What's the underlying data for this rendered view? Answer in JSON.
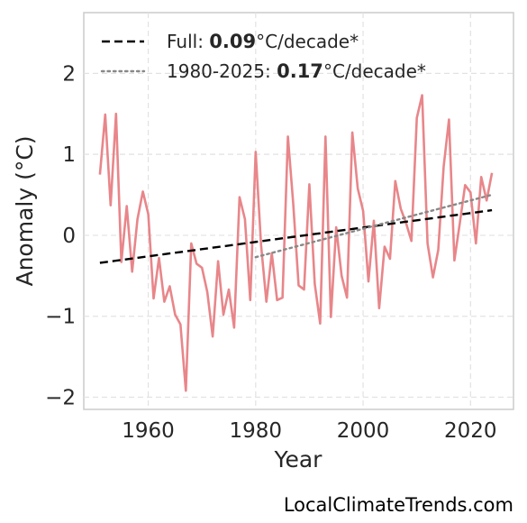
{
  "chart_data": {
    "type": "line",
    "xlabel": "Year",
    "ylabel": "Anomaly (°C)",
    "xlim": [
      1948,
      2028
    ],
    "ylim": [
      -2.15,
      2.75
    ],
    "xticks": [
      1960,
      1980,
      2000,
      2020
    ],
    "yticks": [
      -2,
      -1,
      0,
      1,
      2
    ],
    "ytick_labels": [
      "−2",
      "−1",
      "0",
      "1",
      "2"
    ],
    "grid": true,
    "legend_position": "top-left",
    "series": [
      {
        "style": "solid",
        "color": "#e8868a",
        "x": [
          1951,
          1952,
          1953,
          1954,
          1955,
          1956,
          1957,
          1958,
          1959,
          1960,
          1961,
          1962,
          1963,
          1964,
          1965,
          1966,
          1967,
          1968,
          1969,
          1970,
          1971,
          1972,
          1973,
          1974,
          1975,
          1976,
          1977,
          1978,
          1979,
          1980,
          1981,
          1982,
          1983,
          1984,
          1985,
          1986,
          1987,
          1988,
          1989,
          1990,
          1991,
          1992,
          1993,
          1994,
          1995,
          1996,
          1997,
          1998,
          1999,
          2000,
          2001,
          2002,
          2003,
          2004,
          2005,
          2006,
          2007,
          2008,
          2009,
          2010,
          2011,
          2012,
          2013,
          2014,
          2015,
          2016,
          2017,
          2018,
          2019,
          2020,
          2021,
          2022,
          2023,
          2024
        ],
        "y": [
          0.75,
          1.49,
          0.37,
          1.5,
          -0.33,
          0.36,
          -0.45,
          0.2,
          0.54,
          0.26,
          -0.78,
          -0.28,
          -0.82,
          -0.63,
          -0.98,
          -1.1,
          -1.92,
          -0.1,
          -0.35,
          -0.4,
          -0.7,
          -1.25,
          -0.32,
          -0.98,
          -0.67,
          -1.14,
          0.47,
          0.2,
          -0.8,
          1.03,
          -0.12,
          -0.82,
          -0.22,
          -0.8,
          -0.77,
          1.22,
          0.39,
          -0.62,
          -0.67,
          0.63,
          -0.6,
          -1.09,
          1.22,
          -1.01,
          0.1,
          -0.5,
          -0.77,
          1.27,
          0.58,
          0.3,
          -0.57,
          0.18,
          -0.9,
          -0.14,
          -0.29,
          0.67,
          0.33,
          0.15,
          -0.07,
          1.45,
          1.73,
          -0.1,
          -0.52,
          -0.18,
          0.85,
          1.43,
          -0.31,
          0.15,
          0.62,
          0.53,
          -0.1,
          0.72,
          0.43,
          0.77
        ]
      },
      {
        "style": "dashed",
        "color": "#000000",
        "x": [
          1951,
          2024
        ],
        "y": [
          -0.34,
          0.31
        ]
      },
      {
        "style": "dotted",
        "color": "#888888",
        "x": [
          1980,
          2024
        ],
        "y": [
          -0.27,
          0.5
        ]
      }
    ],
    "legend": [
      {
        "style": "dashed",
        "color": "#000000",
        "prefix": "Full: ",
        "value": "0.09",
        "suffix": "°C/decade*"
      },
      {
        "style": "dotted",
        "color": "#888888",
        "prefix": "1980-2025: ",
        "value": "0.17",
        "suffix": "°C/decade*"
      }
    ]
  },
  "watermark": "LocalClimateTrends.com"
}
